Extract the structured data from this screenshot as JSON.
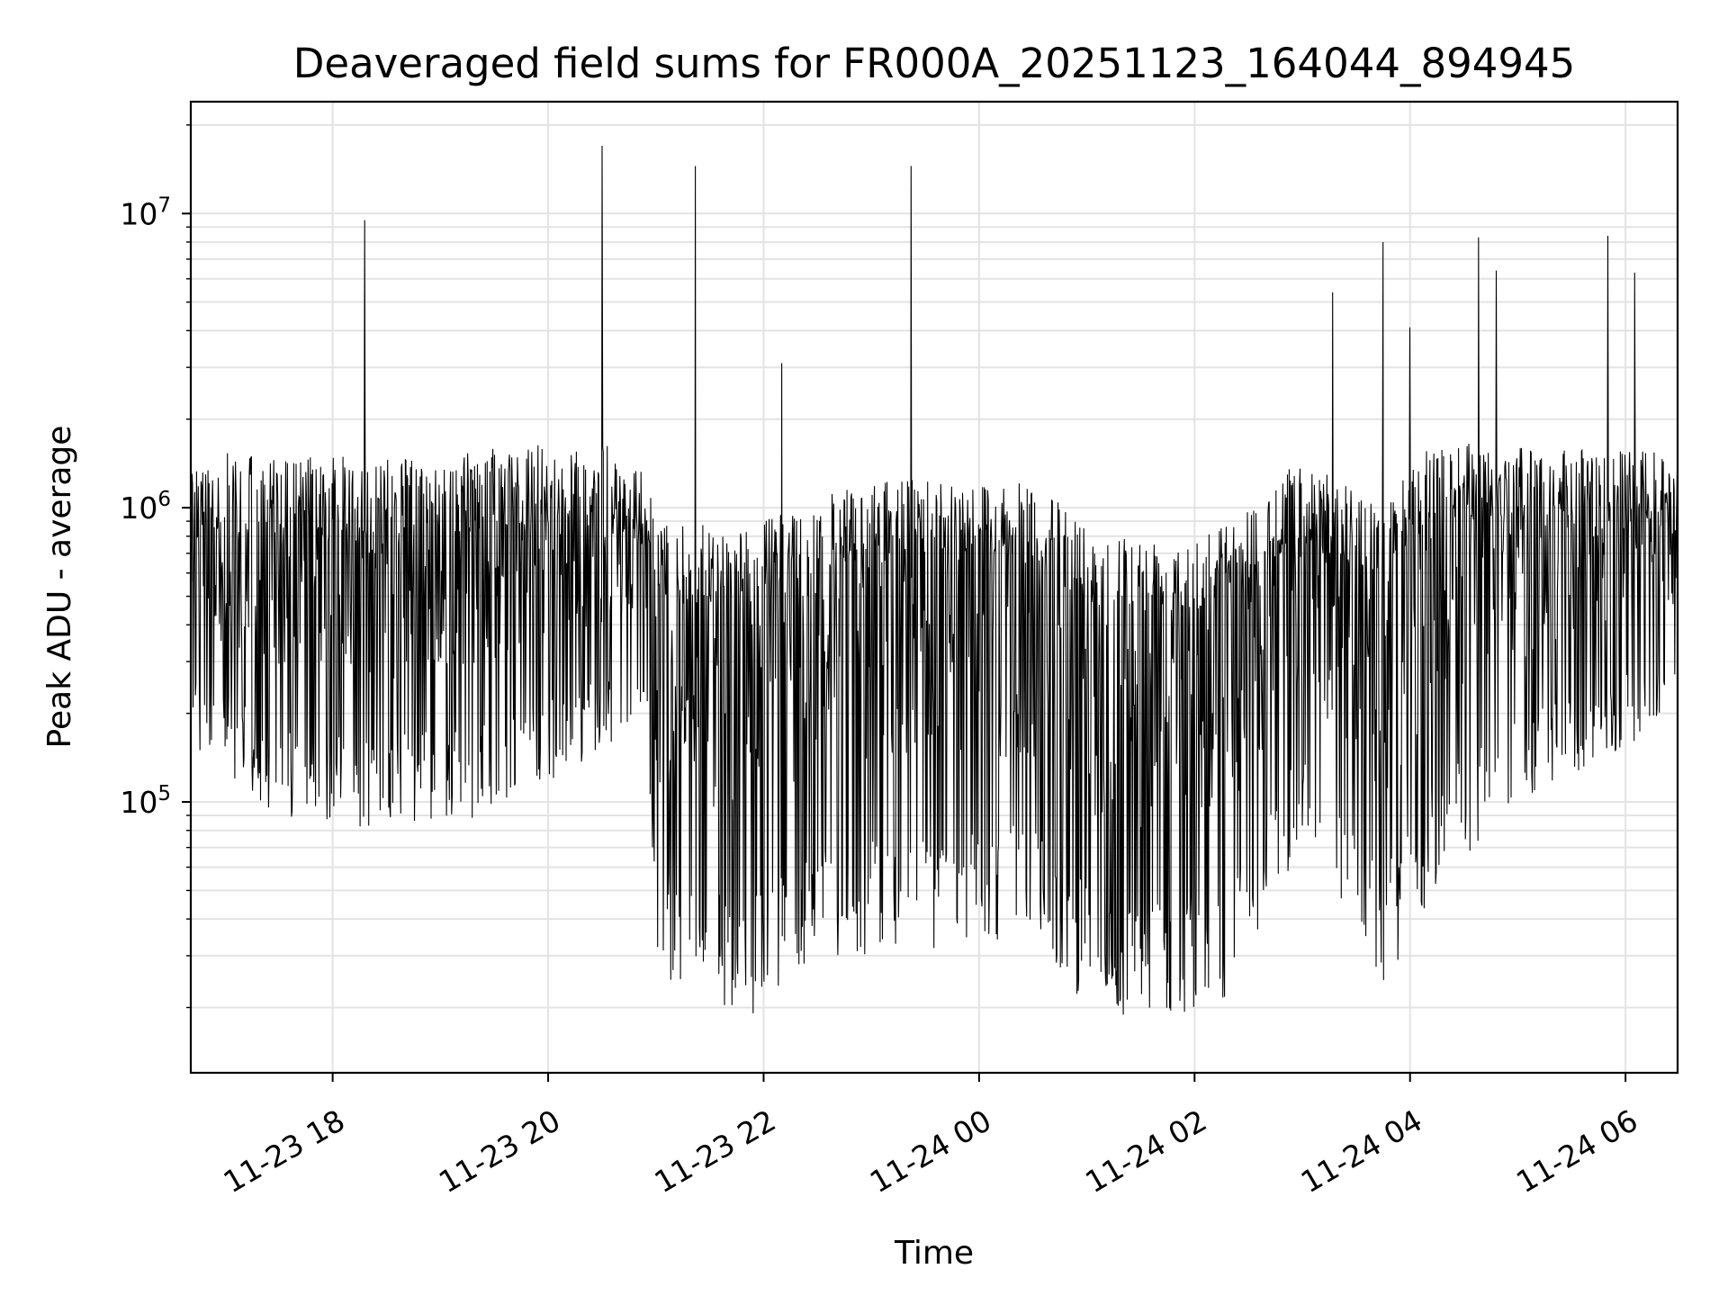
{
  "chart_data": {
    "type": "line",
    "title": "Deaveraged field sums for FR000A_20251123_164044_894945",
    "xlabel": "Time",
    "ylabel": "Peak ADU - average",
    "y_scale": "log",
    "ylim": [
      12000,
      24000000
    ],
    "xlim": [
      "2025-11-23 16:41",
      "2025-11-24 06:29"
    ],
    "grid": true,
    "line_color": "#000000",
    "x_ticks": [
      {
        "value": "2025-11-23 18:00",
        "label": "11-23 18"
      },
      {
        "value": "2025-11-23 20:00",
        "label": "11-23 20"
      },
      {
        "value": "2025-11-23 22:00",
        "label": "11-23 22"
      },
      {
        "value": "2025-11-24 00:00",
        "label": "11-24 00"
      },
      {
        "value": "2025-11-24 02:00",
        "label": "11-24 02"
      },
      {
        "value": "2025-11-24 04:00",
        "label": "11-24 04"
      },
      {
        "value": "2025-11-24 06:00",
        "label": "11-24 06"
      }
    ],
    "y_ticks": [
      {
        "value": 100000,
        "base": "10",
        "exp": "5"
      },
      {
        "value": 1000000,
        "base": "10",
        "exp": "6"
      },
      {
        "value": 10000000,
        "base": "10",
        "exp": "7"
      }
    ],
    "envelope": [
      {
        "t": "2025-11-23 16:41",
        "hi": 1600000,
        "lo": 150000
      },
      {
        "t": "2025-11-23 17:30",
        "hi": 1500000,
        "lo": 90000
      },
      {
        "t": "2025-11-23 18:30",
        "hi": 1500000,
        "lo": 80000
      },
      {
        "t": "2025-11-23 19:30",
        "hi": 1600000,
        "lo": 90000
      },
      {
        "t": "2025-11-23 20:30",
        "hi": 1700000,
        "lo": 150000
      },
      {
        "t": "2025-11-23 20:55",
        "hi": 1300000,
        "lo": 200000
      },
      {
        "t": "2025-11-23 21:00",
        "hi": 900000,
        "lo": 25000
      },
      {
        "t": "2025-11-23 21:50",
        "hi": 850000,
        "lo": 18000
      },
      {
        "t": "2025-11-23 22:30",
        "hi": 1100000,
        "lo": 30000
      },
      {
        "t": "2025-11-23 23:30",
        "hi": 1300000,
        "lo": 30000
      },
      {
        "t": "2025-11-24 00:30",
        "hi": 1200000,
        "lo": 35000
      },
      {
        "t": "2025-11-24 01:00",
        "hi": 900000,
        "lo": 20000
      },
      {
        "t": "2025-11-24 01:30",
        "hi": 800000,
        "lo": 17000
      },
      {
        "t": "2025-11-24 02:20",
        "hi": 900000,
        "lo": 22000
      },
      {
        "t": "2025-11-24 03:00",
        "hi": 1500000,
        "lo": 70000
      },
      {
        "t": "2025-11-24 03:45",
        "hi": 1000000,
        "lo": 22000
      },
      {
        "t": "2025-11-24 04:15",
        "hi": 1800000,
        "lo": 50000
      },
      {
        "t": "2025-11-24 05:00",
        "hi": 1600000,
        "lo": 100000
      },
      {
        "t": "2025-11-24 06:00",
        "hi": 1600000,
        "lo": 150000
      },
      {
        "t": "2025-11-24 06:29",
        "hi": 1500000,
        "lo": 200000
      }
    ],
    "spikes": [
      {
        "t": "2025-11-23 18:18",
        "value": 9500000
      },
      {
        "t": "2025-11-23 20:30",
        "value": 17000000
      },
      {
        "t": "2025-11-23 21:22",
        "value": 14500000
      },
      {
        "t": "2025-11-23 22:10",
        "value": 3100000
      },
      {
        "t": "2025-11-23 23:22",
        "value": 14500000
      },
      {
        "t": "2025-11-24 03:17",
        "value": 5400000
      },
      {
        "t": "2025-11-24 03:45",
        "value": 8000000
      },
      {
        "t": "2025-11-24 04:00",
        "value": 4100000
      },
      {
        "t": "2025-11-24 04:38",
        "value": 8300000
      },
      {
        "t": "2025-11-24 04:48",
        "value": 6400000
      },
      {
        "t": "2025-11-24 05:50",
        "value": 8400000
      },
      {
        "t": "2025-11-24 06:05",
        "value": 6300000
      }
    ]
  }
}
